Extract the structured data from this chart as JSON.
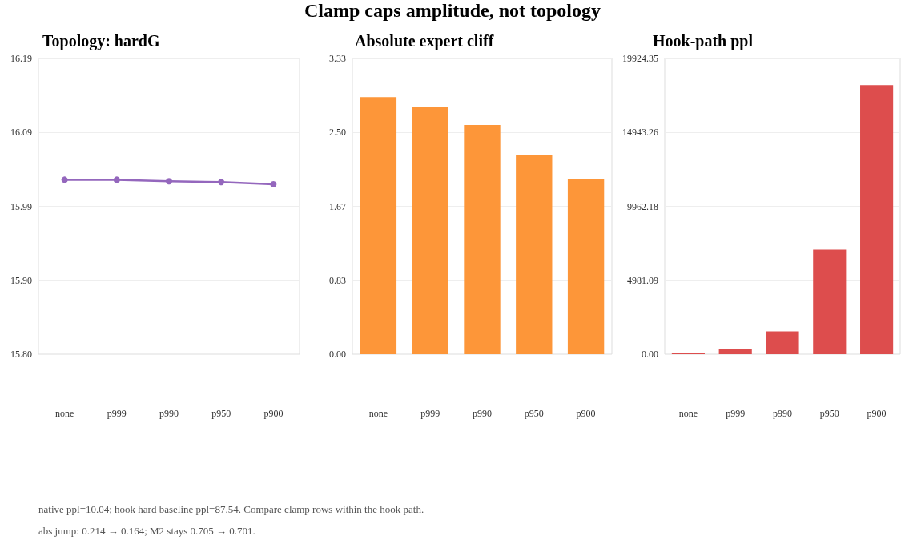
{
  "chart_data": [
    {
      "type": "other",
      "title": "Clamp caps amplitude, not topology",
      "annotations": [
        "native ppl=10.04; hook hard baseline ppl=87.54. Compare clamp rows within the hook path.",
        "abs jump: 0.214 → 0.164; M2 stays 0.705 → 0.701."
      ]
    },
    {
      "type": "line",
      "title": "Topology: hardG",
      "categories": [
        "none",
        "p999",
        "p990",
        "p950",
        "p900"
      ],
      "series": [
        {
          "color": "#9467bd",
          "values": [
            16.03,
            16.03,
            16.028,
            16.027,
            16.024
          ]
        }
      ],
      "ylim": [
        15.8,
        16.19
      ],
      "yticks": [
        {
          "value": 15.8,
          "label": "15.80"
        },
        {
          "value": 15.8975,
          "label": "15.90"
        },
        {
          "value": 15.995,
          "label": "15.99"
        },
        {
          "value": 16.0925,
          "label": "16.09"
        },
        {
          "value": 16.19,
          "label": "16.19"
        }
      ],
      "grid": "y",
      "marker": "circle",
      "line_style": "solid"
    },
    {
      "type": "bar",
      "title": "Absolute expert cliff",
      "categories": [
        "none",
        "p999",
        "p990",
        "p950",
        "p900"
      ],
      "series": [
        {
          "color": "#fd9639",
          "values": [
            2.895,
            2.787,
            2.58,
            2.238,
            1.968
          ]
        }
      ],
      "ylim": [
        0,
        3.33
      ],
      "yticks": [
        {
          "value": 0,
          "label": "0.00"
        },
        {
          "value": 0.8325,
          "label": "0.83"
        },
        {
          "value": 1.665,
          "label": "1.67"
        },
        {
          "value": 2.4975,
          "label": "2.50"
        },
        {
          "value": 3.33,
          "label": "3.33"
        }
      ],
      "grid": "y"
    },
    {
      "type": "bar",
      "title": "Hook-path ppl",
      "categories": [
        "none",
        "p999",
        "p990",
        "p950",
        "p900"
      ],
      "series": [
        {
          "color": "#dd4d4d",
          "values": [
            90,
            360,
            1540,
            7040,
            18130
          ]
        }
      ],
      "ylim": [
        0,
        19924.35
      ],
      "yticks": [
        {
          "value": 0,
          "label": "0.00"
        },
        {
          "value": 4981.0875,
          "label": "4981.09"
        },
        {
          "value": 9962.175,
          "label": "9962.18"
        },
        {
          "value": 14943.2625,
          "label": "14943.26"
        },
        {
          "value": 19924.35,
          "label": "19924.35"
        }
      ],
      "grid": "y"
    }
  ]
}
